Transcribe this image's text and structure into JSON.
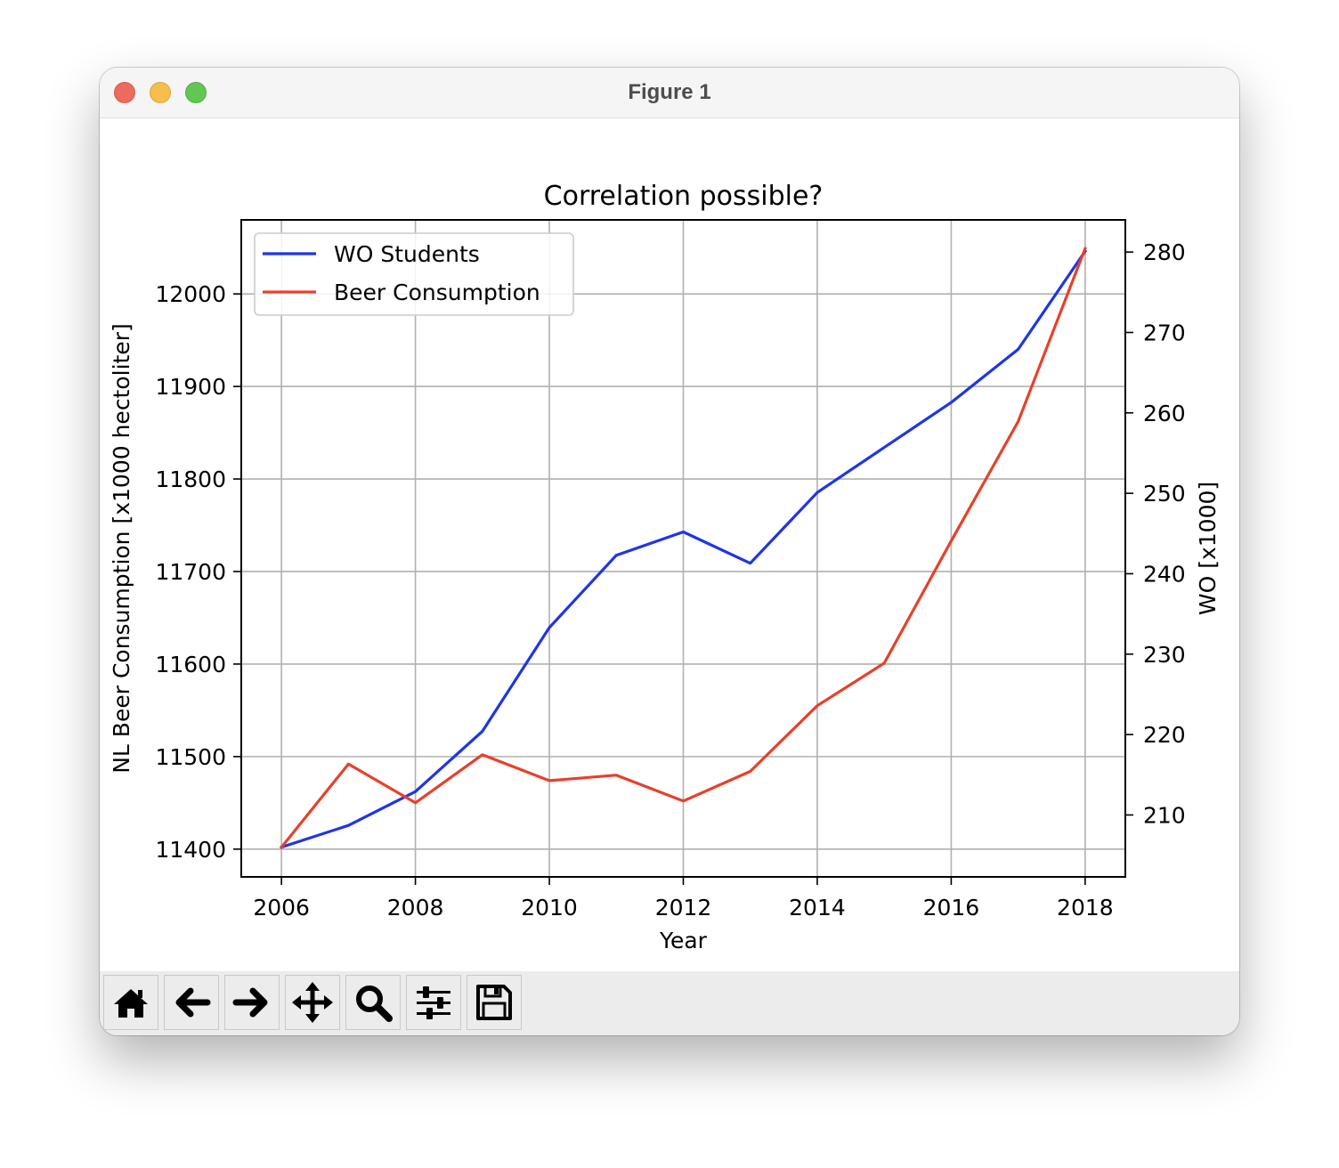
{
  "window": {
    "title": "Figure 1"
  },
  "toolbar": {
    "buttons": [
      {
        "name": "home",
        "icon": "home-icon"
      },
      {
        "name": "back",
        "icon": "arrow-left-icon"
      },
      {
        "name": "forward",
        "icon": "arrow-right-icon"
      },
      {
        "name": "pan",
        "icon": "move-icon"
      },
      {
        "name": "zoom",
        "icon": "magnifier-icon"
      },
      {
        "name": "configure-subplots",
        "icon": "sliders-icon"
      },
      {
        "name": "save",
        "icon": "floppy-disk-icon"
      }
    ]
  },
  "chart_data": {
    "type": "line",
    "title": "Correlation possible?",
    "xlabel": "Year",
    "ylabel_left": "NL Beer Consumption [x1000 hectoliter]",
    "ylabel_right": "WO [x1000]",
    "x": [
      2006,
      2007,
      2008,
      2009,
      2010,
      2011,
      2012,
      2013,
      2014,
      2015,
      2016,
      2017,
      2018
    ],
    "xticks": [
      "2006",
      "2008",
      "2010",
      "2012",
      "2014",
      "2016",
      "2018"
    ],
    "xlim": [
      2005.4,
      2018.6
    ],
    "yticks_left": [
      "11400",
      "11500",
      "11600",
      "11700",
      "11800",
      "11900",
      "12000"
    ],
    "ylim_left": [
      11370,
      12080
    ],
    "yticks_right": [
      "210",
      "220",
      "230",
      "240",
      "250",
      "260",
      "270",
      "280"
    ],
    "ylim_right": [
      202.3,
      284.0
    ],
    "grid": true,
    "legend_position": "upper-left",
    "series": [
      {
        "name": "WO Students",
        "axis": "right",
        "color": "#1f35e6",
        "values": [
          206.0,
          208.7,
          212.9,
          220.4,
          233.3,
          242.3,
          245.2,
          241.3,
          250.1,
          255.7,
          261.3,
          267.9,
          280.1
        ]
      },
      {
        "name": "Beer Consumption",
        "axis": "left",
        "color": "#e8402b",
        "values": [
          11402,
          11492,
          11450,
          11502,
          11474,
          11480,
          11452,
          11484,
          11555,
          11601,
          11733,
          11862,
          12049
        ]
      }
    ]
  }
}
